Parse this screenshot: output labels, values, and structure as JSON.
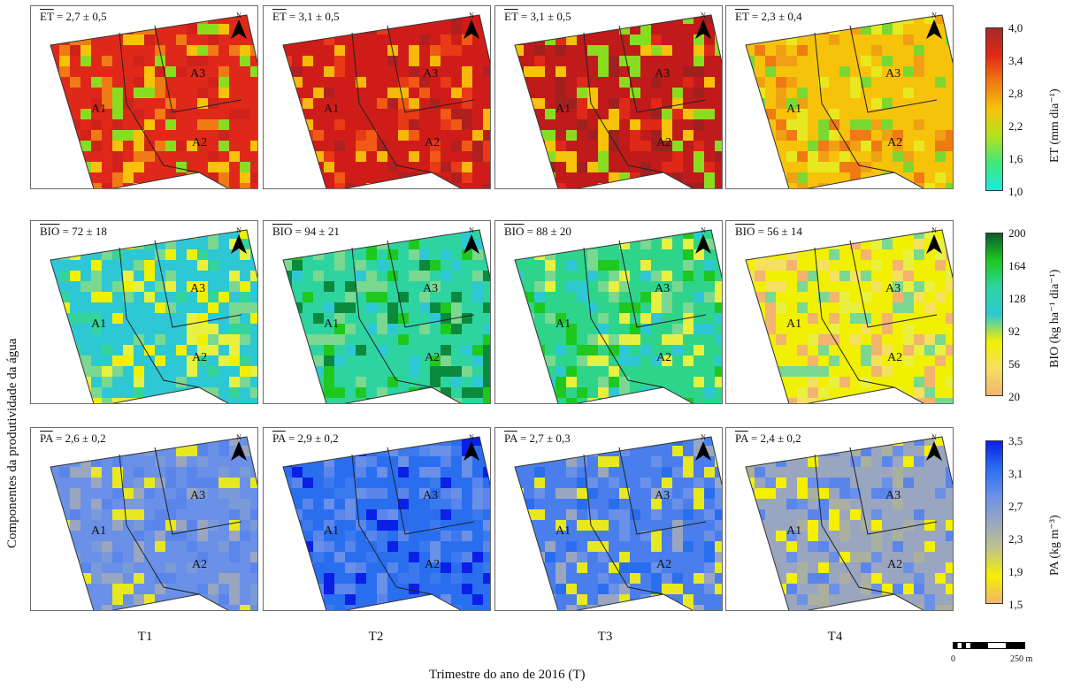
{
  "y_axis_label": "Componentes da produtividade da água",
  "x_axis_label": "Trimestre do ano de 2016 (T)",
  "quarters": [
    "T1",
    "T2",
    "T3",
    "T4"
  ],
  "north_label": "N",
  "area_labels": [
    "A1",
    "A2",
    "A3"
  ],
  "rows": [
    {
      "var": "ET",
      "stats": [
        "= 2,7 ± 0,5",
        "= 3,1 ± 0,5",
        "= 3,1 ± 0,5",
        "= 2,3 ± 0,4"
      ]
    },
    {
      "var": "BIO",
      "stats": [
        "= 72 ± 18",
        "= 94 ± 21",
        "= 88 ± 20",
        "= 56 ± 14"
      ]
    },
    {
      "var": "PA",
      "stats": [
        "= 2,6 ± 0,2",
        "= 2,9 ± 0,2",
        "= 2,7 ± 0,3",
        "= 2,4 ± 0,2"
      ]
    }
  ],
  "legends": [
    {
      "label": "ET (mm dia⁻¹)",
      "ticks": [
        "4,0",
        "3,4",
        "2,8",
        "2,2",
        "1,6",
        "1,0"
      ],
      "colors": [
        "#a52a2a",
        "#e02a14",
        "#f07a14",
        "#f6c30a",
        "#b4e01e",
        "#3ee87a",
        "#22e6e0"
      ]
    },
    {
      "label": "BIO (kg ha⁻¹ dia⁻¹)",
      "ticks": [
        "200",
        "164",
        "128",
        "92",
        "56",
        "20"
      ],
      "colors": [
        "#0b5c2e",
        "#1ec81e",
        "#2ed4a0",
        "#2ec8d4",
        "#f0f000",
        "#f5e060",
        "#f2b470"
      ]
    },
    {
      "label": "PA (kg m⁻³)",
      "ticks": [
        "3,5",
        "3,1",
        "2,7",
        "2,3",
        "1,9",
        "1,5"
      ],
      "colors": [
        "#0a20e6",
        "#2a6ef0",
        "#6a90e8",
        "#9aa6c0",
        "#c0c48a",
        "#f4f000",
        "#f2b470"
      ]
    }
  ],
  "scale": {
    "left": "0",
    "right": "250 m"
  }
}
